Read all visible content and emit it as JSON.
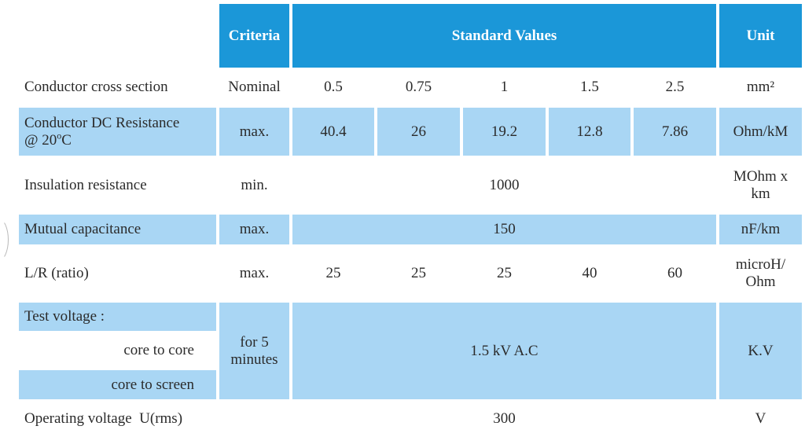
{
  "header": {
    "criteria": "Criteria",
    "standard_values": "Standard Values",
    "unit": "Unit"
  },
  "rows": {
    "cross_section": {
      "label": "Conductor cross section",
      "criteria": "Nominal",
      "values": [
        "0.5",
        "0.75",
        "1",
        "1.5",
        "2.5"
      ],
      "unit": "mm²"
    },
    "dc_resistance": {
      "label_line1": "Conductor DC Resistance",
      "label_line2_prefix": "@ 20",
      "label_line2_sup": "o",
      "label_line2_suffix": "C",
      "criteria": "max.",
      "values": [
        "40.4",
        "26",
        "19.2",
        "12.8",
        "7.86"
      ],
      "unit": "Ohm/kM"
    },
    "insulation": {
      "label": "Insulation resistance",
      "criteria": "min.",
      "value": "1000",
      "unit_line1": "MOhm x",
      "unit_line2": "km"
    },
    "capacitance": {
      "label": "Mutual capacitance",
      "criteria": "max.",
      "value": "150",
      "unit": "nF/km"
    },
    "lr_ratio": {
      "label": "L/R (ratio)",
      "criteria": "max.",
      "values": [
        "25",
        "25",
        "25",
        "40",
        "60"
      ],
      "unit_line1": "microH/",
      "unit_line2": "Ohm"
    },
    "test_voltage": {
      "label": "Test voltage :",
      "sub1": "core to core",
      "sub2": "core to screen",
      "criteria_line1": "for 5",
      "criteria_line2": "minutes",
      "value": "1.5 kV A.C",
      "unit": "K.V"
    },
    "operating_voltage": {
      "label": "Operating voltage  U(rms)",
      "value": "300",
      "unit": "V"
    }
  },
  "colors": {
    "header_bg": "#1b97d8",
    "band_bg": "#a9d6f4",
    "text": "#2b2b2b"
  }
}
